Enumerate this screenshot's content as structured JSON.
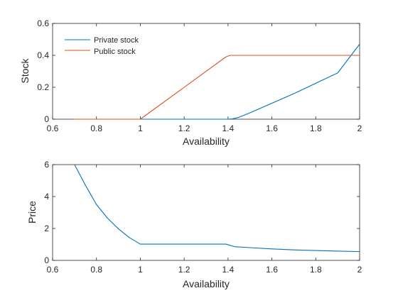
{
  "chart_data": [
    {
      "type": "line",
      "xlabel": "Availability",
      "ylabel": "Stock",
      "xlim": [
        0.6,
        2
      ],
      "ylim": [
        0,
        0.6
      ],
      "xticks": [
        0.6,
        0.8,
        1,
        1.2,
        1.4,
        1.6,
        1.8,
        2
      ],
      "xtick_labels": [
        "0.6",
        "0.8",
        "1",
        "1.2",
        "1.4",
        "1.6",
        "1.8",
        "2"
      ],
      "yticks": [
        0,
        0.2,
        0.4,
        0.6
      ],
      "ytick_labels": [
        "0",
        "0.2",
        "0.4",
        "0.6"
      ],
      "grid": false,
      "legend": "top-left",
      "series": [
        {
          "name": "Private stock",
          "color": "#0072BD",
          "x": [
            0.7,
            1.0,
            1.4,
            1.42,
            1.45,
            1.5,
            1.6,
            1.7,
            1.8,
            1.9,
            2.0
          ],
          "y": [
            0,
            0,
            0,
            0.002,
            0.012,
            0.04,
            0.1,
            0.16,
            0.225,
            0.29,
            0.47
          ]
        },
        {
          "name": "Public stock",
          "color": "#D95319",
          "x": [
            0.7,
            1.0,
            1.39,
            1.41,
            2.0
          ],
          "y": [
            0,
            0,
            0.39,
            0.4,
            0.4
          ]
        }
      ]
    },
    {
      "type": "line",
      "xlabel": "Availability",
      "ylabel": "Price",
      "xlim": [
        0.6,
        2
      ],
      "ylim": [
        0,
        6
      ],
      "xticks": [
        0.6,
        0.8,
        1,
        1.2,
        1.4,
        1.6,
        1.8,
        2
      ],
      "xtick_labels": [
        "0.6",
        "0.8",
        "1",
        "1.2",
        "1.4",
        "1.6",
        "1.8",
        "2"
      ],
      "yticks": [
        0,
        2,
        4,
        6
      ],
      "ytick_labels": [
        "0",
        "2",
        "4",
        "6"
      ],
      "grid": false,
      "series": [
        {
          "color": "#0072BD",
          "x": [
            0.7,
            0.75,
            0.8,
            0.85,
            0.9,
            0.95,
            1.0,
            1.39,
            1.43,
            1.5,
            1.6,
            1.7,
            1.8,
            1.9,
            2.0
          ],
          "y": [
            6,
            4.7,
            3.5,
            2.65,
            1.98,
            1.43,
            1.02,
            1.02,
            0.86,
            0.8,
            0.72,
            0.66,
            0.62,
            0.58,
            0.55
          ]
        }
      ]
    }
  ]
}
